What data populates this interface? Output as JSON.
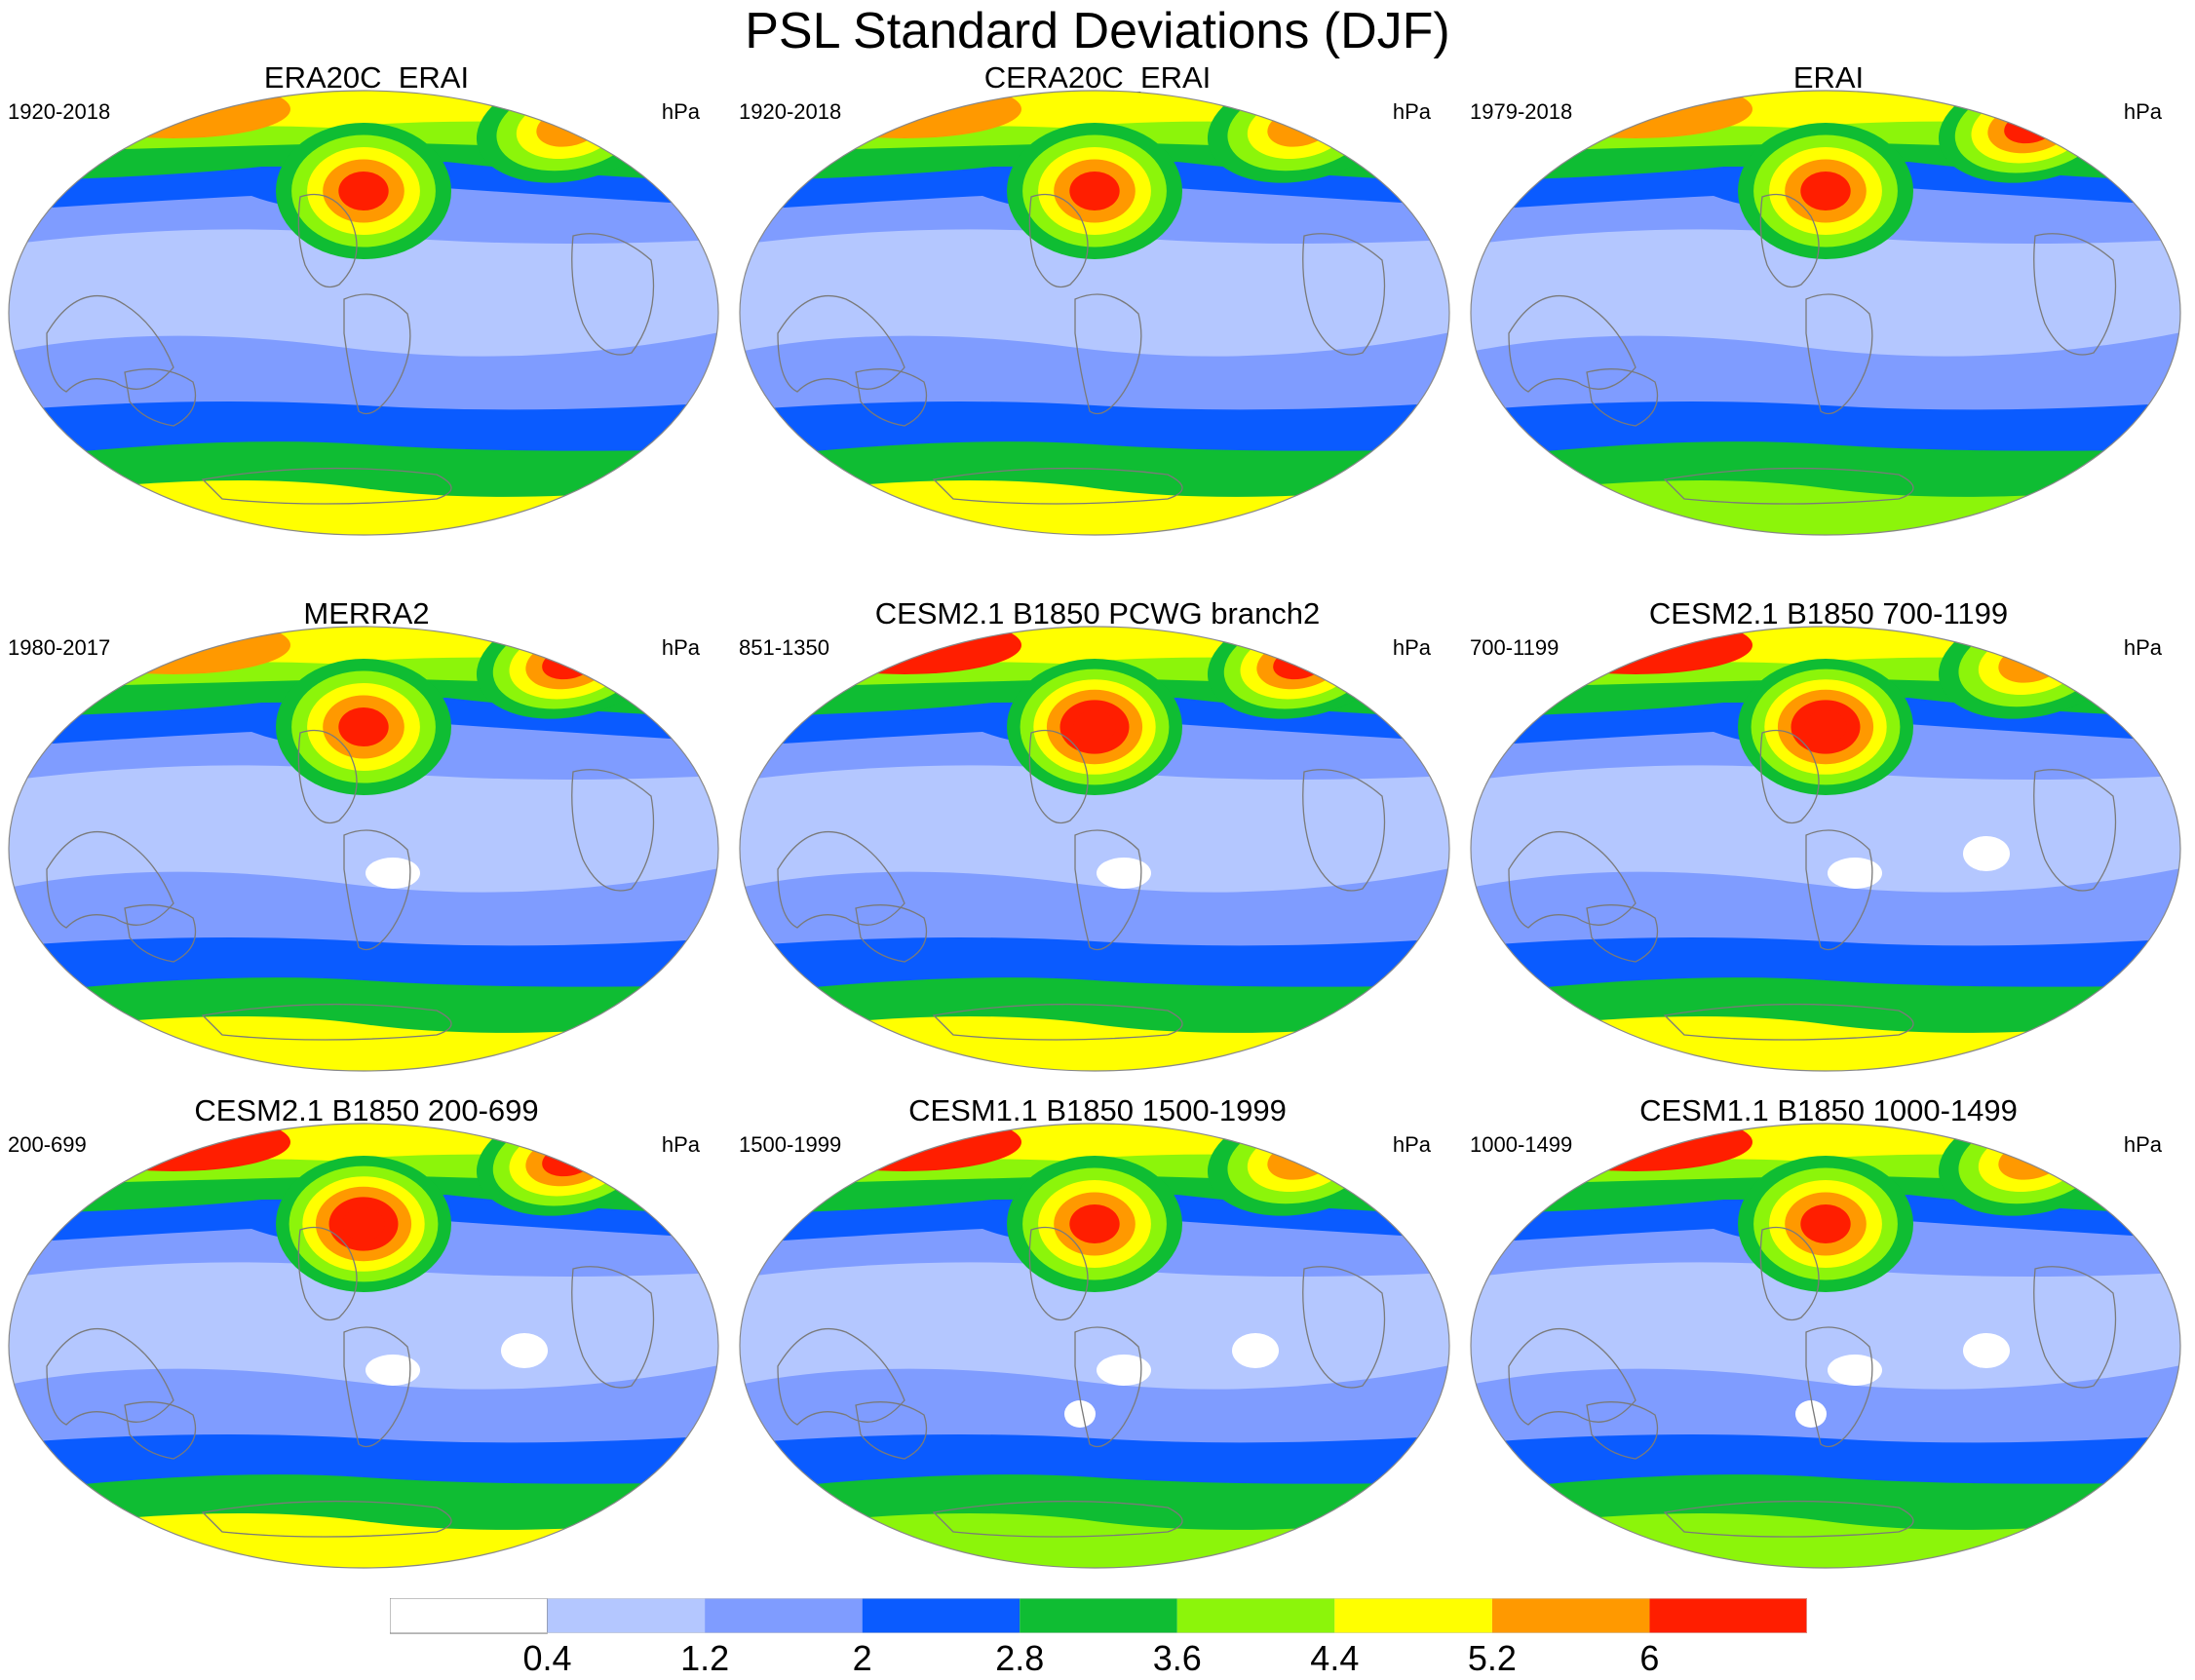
{
  "title": "PSL Standard Deviations (DJF)",
  "units": "hPa",
  "panels": [
    {
      "title": "ERA20C_ERAI",
      "period": "1920-2018",
      "units": "hPa",
      "nh_max": 5.8,
      "aleutian_max": 6.4,
      "icelandic_max": 5.6,
      "so_max": 4.8,
      "white_patches": 0
    },
    {
      "title": "CERA20C_ERAI",
      "period": "1920-2018",
      "units": "hPa",
      "nh_max": 5.8,
      "aleutian_max": 6.4,
      "icelandic_max": 5.6,
      "so_max": 4.8,
      "white_patches": 0
    },
    {
      "title": "ERAI",
      "period": "1979-2018",
      "units": "hPa",
      "nh_max": 5.8,
      "aleutian_max": 6.2,
      "icelandic_max": 6.1,
      "so_max": 4.2,
      "white_patches": 0
    },
    {
      "title": "MERRA2",
      "period": "1980-2017",
      "units": "hPa",
      "nh_max": 5.6,
      "aleutian_max": 6.2,
      "icelandic_max": 6.3,
      "so_max": 4.6,
      "white_patches": 1
    },
    {
      "title": "CESM2.1 B1850 PCWG branch2",
      "period": "851-1350",
      "units": "hPa",
      "nh_max": 6.4,
      "aleutian_max": 6.8,
      "icelandic_max": 6.3,
      "so_max": 4.8,
      "white_patches": 1
    },
    {
      "title": "CESM2.1 B1850 700-1199",
      "period": "700-1199",
      "units": "hPa",
      "nh_max": 6.4,
      "aleutian_max": 6.8,
      "icelandic_max": 5.6,
      "so_max": 4.4,
      "white_patches": 2
    },
    {
      "title": "CESM2.1 B1850 200-699",
      "period": "200-699",
      "units": "hPa",
      "nh_max": 6.4,
      "aleutian_max": 6.9,
      "icelandic_max": 6.4,
      "so_max": 4.8,
      "white_patches": 2
    },
    {
      "title": "CESM1.1 B1850 1500-1999",
      "period": "1500-1999",
      "units": "hPa",
      "nh_max": 6.2,
      "aleutian_max": 6.3,
      "icelandic_max": 5.6,
      "so_max": 4.2,
      "white_patches": 3
    },
    {
      "title": "CESM1.1 B1850 1000-1499",
      "period": "1000-1499",
      "units": "hPa",
      "nh_max": 6.2,
      "aleutian_max": 6.3,
      "icelandic_max": 5.6,
      "so_max": 4.2,
      "white_patches": 3
    }
  ],
  "colorbar": {
    "labels": [
      "0.4",
      "1.2",
      "2",
      "2.8",
      "3.6",
      "4.4",
      "5.2",
      "6"
    ],
    "colors": [
      "#ffffff",
      "#b4c7ff",
      "#7f9cff",
      "#0a5bff",
      "#0fbd33",
      "#8cf50a",
      "#ffff00",
      "#ff9900",
      "#ff1e00"
    ]
  }
}
